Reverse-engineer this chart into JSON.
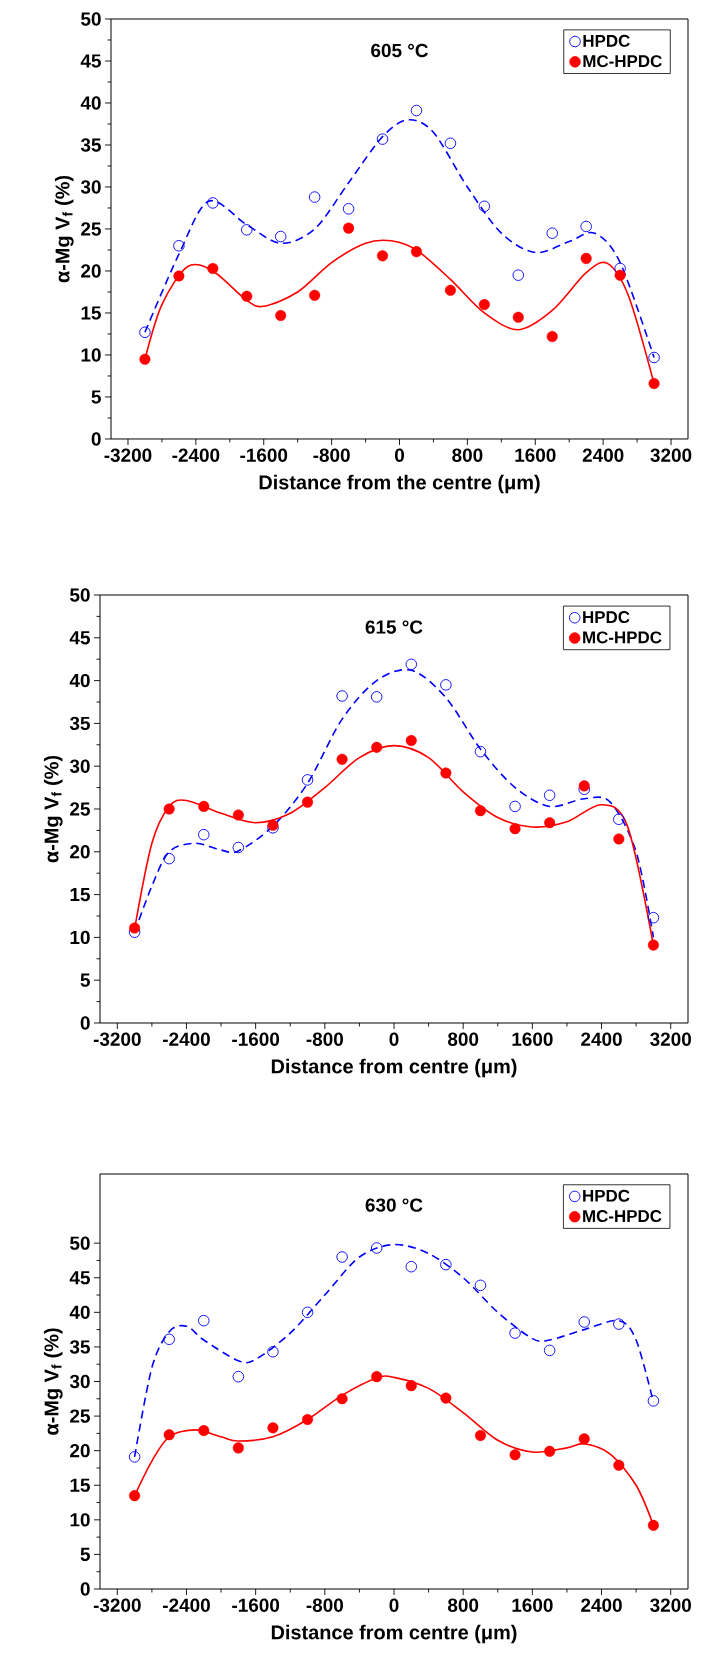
{
  "chart_data": [
    {
      "type": "scatter",
      "title": "605 °C",
      "xlabel": "Distance from the centre (μm)",
      "ylabel": "α-Mg V$_{f}$ (%)",
      "xlim": [
        -3400,
        3400
      ],
      "ylim": [
        0,
        50
      ],
      "xticks": [
        -3200,
        -2400,
        -1600,
        -800,
        0,
        800,
        1600,
        2400,
        3200
      ],
      "yticks": [
        0,
        5,
        10,
        15,
        20,
        25,
        30,
        35,
        40,
        45,
        50
      ],
      "legend": "top right",
      "x": [
        -3000,
        -2600,
        -2200,
        -1800,
        -1400,
        -1000,
        -600,
        -200,
        200,
        600,
        1000,
        1400,
        1800,
        2200,
        2600,
        3000
      ],
      "series": [
        {
          "name": "HPDC",
          "color": "#0000ff",
          "marker": "open circle",
          "values": [
            12.7,
            23.0,
            28.1,
            24.9,
            24.1,
            28.8,
            27.4,
            35.7,
            39.1,
            35.2,
            27.7,
            19.5,
            24.5,
            25.3,
            20.3,
            9.7
          ]
        },
        {
          "name": "MC-HPDC",
          "color": "#ff0000",
          "marker": "circle",
          "values": [
            9.5,
            19.4,
            20.3,
            17.0,
            14.7,
            17.1,
            25.1,
            21.8,
            22.3,
            17.7,
            16.0,
            14.5,
            12.2,
            21.5,
            19.5,
            6.6
          ]
        },
        {
          "type": "line",
          "color": "#0000ff",
          "line_style": "dashed",
          "x": [
            -3000,
            -2600,
            -2250,
            -1800,
            -1400,
            -1000,
            -600,
            -200,
            100,
            400,
            800,
            1200,
            1600,
            2000,
            2300,
            2600,
            3000
          ],
          "values": [
            12.7,
            22,
            28.3,
            25.5,
            23.3,
            25,
            30.5,
            36,
            38,
            36.5,
            30,
            24.5,
            22.2,
            23.5,
            24.5,
            21,
            9.7
          ]
        },
        {
          "type": "line",
          "color": "#ff0000",
          "line_style": "solid",
          "x": [
            -3000,
            -2800,
            -2500,
            -2200,
            -1800,
            -1600,
            -1200,
            -800,
            -400,
            -100,
            200,
            600,
            1000,
            1400,
            1800,
            2200,
            2450,
            2700,
            3000
          ],
          "values": [
            9.5,
            16,
            20.5,
            20,
            16.5,
            15.8,
            17.5,
            21,
            23.3,
            23.6,
            22.5,
            19,
            15,
            13,
            15.3,
            19.8,
            20.9,
            17,
            6.6
          ]
        }
      ]
    },
    {
      "type": "scatter",
      "title": "615 °C",
      "xlabel": "Distance from centre (μm)",
      "ylabel": "α-Mg V$_{f}$ (%)",
      "xlim": [
        -3400,
        3400
      ],
      "ylim": [
        0,
        50
      ],
      "xticks": [
        -3200,
        -2400,
        -1600,
        -800,
        0,
        800,
        1600,
        2400,
        3200
      ],
      "yticks": [
        0,
        5,
        10,
        15,
        20,
        25,
        30,
        35,
        40,
        45,
        50
      ],
      "legend": "top right",
      "x": [
        -3000,
        -2600,
        -2200,
        -1800,
        -1400,
        -1000,
        -600,
        -200,
        200,
        600,
        1000,
        1400,
        1800,
        2200,
        2600,
        3000
      ],
      "series": [
        {
          "name": "HPDC",
          "color": "#0000ff",
          "marker": "open circle",
          "values": [
            10.6,
            19.2,
            22.0,
            20.5,
            22.8,
            28.4,
            38.2,
            38.1,
            41.9,
            39.5,
            31.7,
            25.3,
            26.6,
            27.3,
            23.8,
            12.3
          ]
        },
        {
          "name": "MC-HPDC",
          "color": "#ff0000",
          "marker": "circle",
          "values": [
            11.1,
            25.0,
            25.3,
            24.3,
            23.1,
            25.8,
            30.8,
            32.2,
            33.0,
            29.2,
            24.8,
            22.7,
            23.4,
            27.7,
            21.5,
            9.1
          ]
        },
        {
          "type": "line",
          "color": "#0000ff",
          "line_style": "dashed",
          "x": [
            -3000,
            -2800,
            -2600,
            -2300,
            -2000,
            -1800,
            -1400,
            -1000,
            -600,
            -200,
            200,
            600,
            1000,
            1400,
            1800,
            2200,
            2500,
            2800,
            3000
          ],
          "values": [
            10.6,
            16,
            20,
            21,
            20.2,
            20.1,
            23,
            28,
            35.5,
            40,
            41.2,
            38,
            32,
            27.5,
            25.3,
            26.2,
            25.8,
            20,
            10
          ]
        },
        {
          "type": "line",
          "color": "#ff0000",
          "line_style": "solid",
          "x": [
            -3000,
            -2800,
            -2600,
            -2400,
            -2000,
            -1600,
            -1200,
            -800,
            -400,
            0,
            400,
            800,
            1200,
            1600,
            2000,
            2400,
            2700,
            3000
          ],
          "values": [
            11,
            21,
            25.3,
            26,
            24.5,
            23.4,
            24.5,
            27.5,
            31,
            32.4,
            31,
            27,
            24,
            22.9,
            23.5,
            25.5,
            23,
            9.1
          ]
        }
      ]
    },
    {
      "type": "scatter",
      "title": "630 °C",
      "xlabel": "Distance from centre (μm)",
      "ylabel": "α-Mg V$_{f}$ (%)",
      "xlim": [
        -3400,
        3400
      ],
      "ylim": [
        0,
        60
      ],
      "xticks": [
        -3200,
        -2400,
        -1600,
        -800,
        0,
        800,
        1600,
        2400,
        3200
      ],
      "yticks": [
        0,
        5,
        10,
        15,
        20,
        25,
        30,
        35,
        40,
        45,
        50
      ],
      "legend": "top right",
      "x": [
        -3000,
        -2600,
        -2200,
        -1800,
        -1400,
        -1000,
        -600,
        -200,
        200,
        600,
        1000,
        1400,
        1800,
        2200,
        2600,
        3000
      ],
      "series": [
        {
          "name": "HPDC",
          "color": "#0000ff",
          "marker": "open circle",
          "values": [
            19.1,
            36.1,
            38.8,
            30.7,
            34.3,
            40.0,
            48.0,
            49.3,
            46.6,
            46.9,
            43.9,
            37.0,
            34.5,
            38.6,
            38.3,
            27.2
          ]
        },
        {
          "name": "MC-HPDC",
          "color": "#ff0000",
          "marker": "circle",
          "values": [
            13.5,
            22.3,
            22.9,
            20.4,
            23.3,
            24.5,
            27.5,
            30.7,
            29.4,
            27.6,
            22.2,
            19.4,
            19.9,
            21.7,
            17.9,
            9.2
          ]
        },
        {
          "type": "line",
          "color": "#0000ff",
          "line_style": "dashed",
          "x": [
            -3000,
            -2800,
            -2600,
            -2400,
            -2200,
            -1800,
            -1600,
            -1200,
            -800,
            -400,
            0,
            400,
            800,
            1200,
            1600,
            1800,
            2200,
            2600,
            2800,
            3000
          ],
          "values": [
            19.1,
            32,
            37.2,
            38,
            36,
            33,
            33.2,
            37,
            42.5,
            48,
            49.8,
            48.5,
            45,
            40,
            36.2,
            36,
            37.5,
            38.8,
            36,
            27
          ]
        },
        {
          "type": "line",
          "color": "#ff0000",
          "line_style": "solid",
          "x": [
            -3000,
            -2800,
            -2600,
            -2300,
            -2000,
            -1800,
            -1400,
            -1000,
            -600,
            -200,
            0,
            400,
            800,
            1200,
            1600,
            2000,
            2200,
            2500,
            2800,
            3000
          ],
          "values": [
            13.5,
            18.5,
            22,
            23,
            22,
            21.4,
            22,
            24.5,
            28,
            30.5,
            30.6,
            29,
            25.5,
            21.5,
            19.8,
            20.4,
            21,
            19.5,
            15,
            9.2
          ]
        }
      ]
    }
  ]
}
